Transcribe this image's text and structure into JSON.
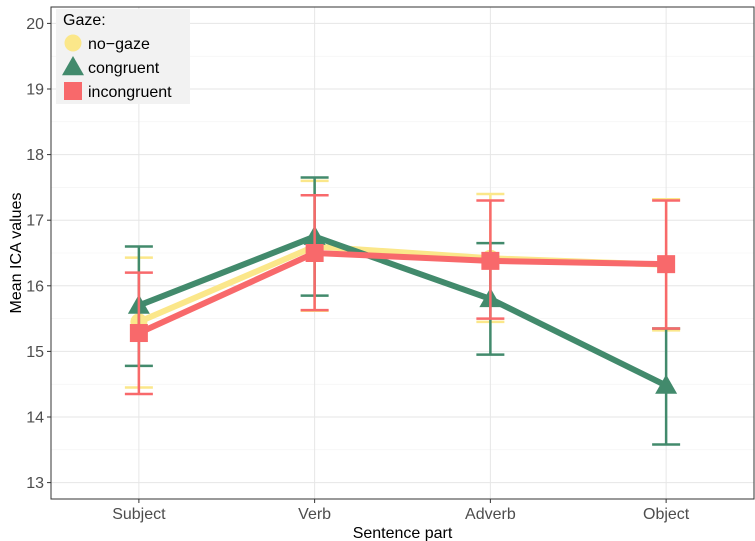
{
  "chart_data": {
    "type": "line",
    "xlabel": "Sentence part",
    "ylabel": "Mean ICA values",
    "categories": [
      "Subject",
      "Verb",
      "Adverb",
      "Object"
    ],
    "ylim": [
      12.75,
      20.25
    ],
    "yticks": [
      13,
      14,
      15,
      16,
      17,
      18,
      19,
      20
    ],
    "grid": true,
    "legend": {
      "title": "Gaze:",
      "position": "top-left"
    },
    "series": [
      {
        "name": "no−gaze",
        "color": "#FBE78A",
        "marker": "circle",
        "values": [
          15.45,
          16.6,
          16.42,
          16.32
        ],
        "error_low": [
          14.45,
          15.62,
          15.45,
          15.32
        ],
        "error_high": [
          16.43,
          17.6,
          17.4,
          17.32
        ]
      },
      {
        "name": "congruent",
        "color": "#428A6C",
        "marker": "triangle",
        "values": [
          15.7,
          16.75,
          15.8,
          14.48
        ],
        "error_low": [
          14.78,
          15.85,
          14.95,
          13.58
        ],
        "error_high": [
          16.6,
          17.65,
          16.65,
          15.35
        ]
      },
      {
        "name": "incongruent",
        "color": "#F8696B",
        "marker": "square",
        "values": [
          15.28,
          16.5,
          16.38,
          16.33
        ],
        "error_low": [
          14.35,
          15.63,
          15.5,
          15.35
        ],
        "error_high": [
          16.2,
          17.38,
          17.3,
          17.3
        ]
      }
    ]
  }
}
